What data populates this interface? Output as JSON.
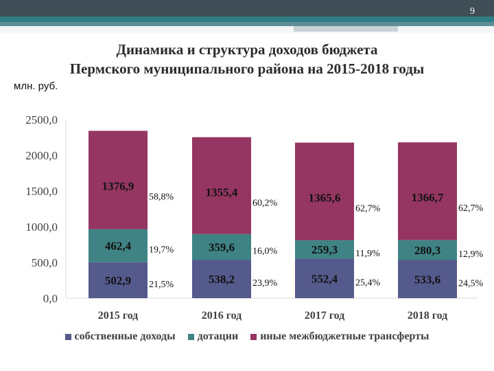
{
  "slide": {
    "page_number": "9"
  },
  "title_line1": "Динамика и структура доходов бюджета",
  "title_line2": "Пермского муниципального района на 2015-2018 годы",
  "unit_label": "млн. руб.",
  "colors": {
    "own": "#555a8c",
    "subsidy": "#3f8385",
    "transfers": "#943661"
  },
  "chart_data": {
    "type": "bar",
    "stacked": true,
    "categories": [
      "2015 год",
      "2016 год",
      "2017 год",
      "2018 год"
    ],
    "series": [
      {
        "name": "собственные доходы",
        "values": [
          502.9,
          538.2,
          552.4,
          533.6
        ],
        "labels": [
          "502,9",
          "538,2",
          "552,4",
          "533,6"
        ],
        "shares": [
          "21,5%",
          "23,9%",
          "25,4%",
          "24,5%"
        ]
      },
      {
        "name": "дотации",
        "values": [
          462.4,
          359.6,
          259.3,
          280.3
        ],
        "labels": [
          "462,4",
          "359,6",
          "259,3",
          "280,3"
        ],
        "shares": [
          "19,7%",
          "16,0%",
          "11,9%",
          "12,9%"
        ]
      },
      {
        "name": "иные межбюджетные трансферты",
        "values": [
          1376.9,
          1355.4,
          1365.6,
          1366.7
        ],
        "labels": [
          "1376,9",
          "1355,4",
          "1365,6",
          "1366,7"
        ],
        "shares": [
          "58,8%",
          "60,2%",
          "62,7%",
          "62,7%"
        ]
      }
    ],
    "ylim": [
      0,
      2500
    ],
    "yticks": [
      0,
      500,
      1000,
      1500,
      2000,
      2500
    ],
    "ytick_labels": [
      "0,0",
      "500,0",
      "1000,0",
      "1500,0",
      "2000,0",
      "2500,0"
    ],
    "legend_position": "bottom",
    "grid": false
  }
}
